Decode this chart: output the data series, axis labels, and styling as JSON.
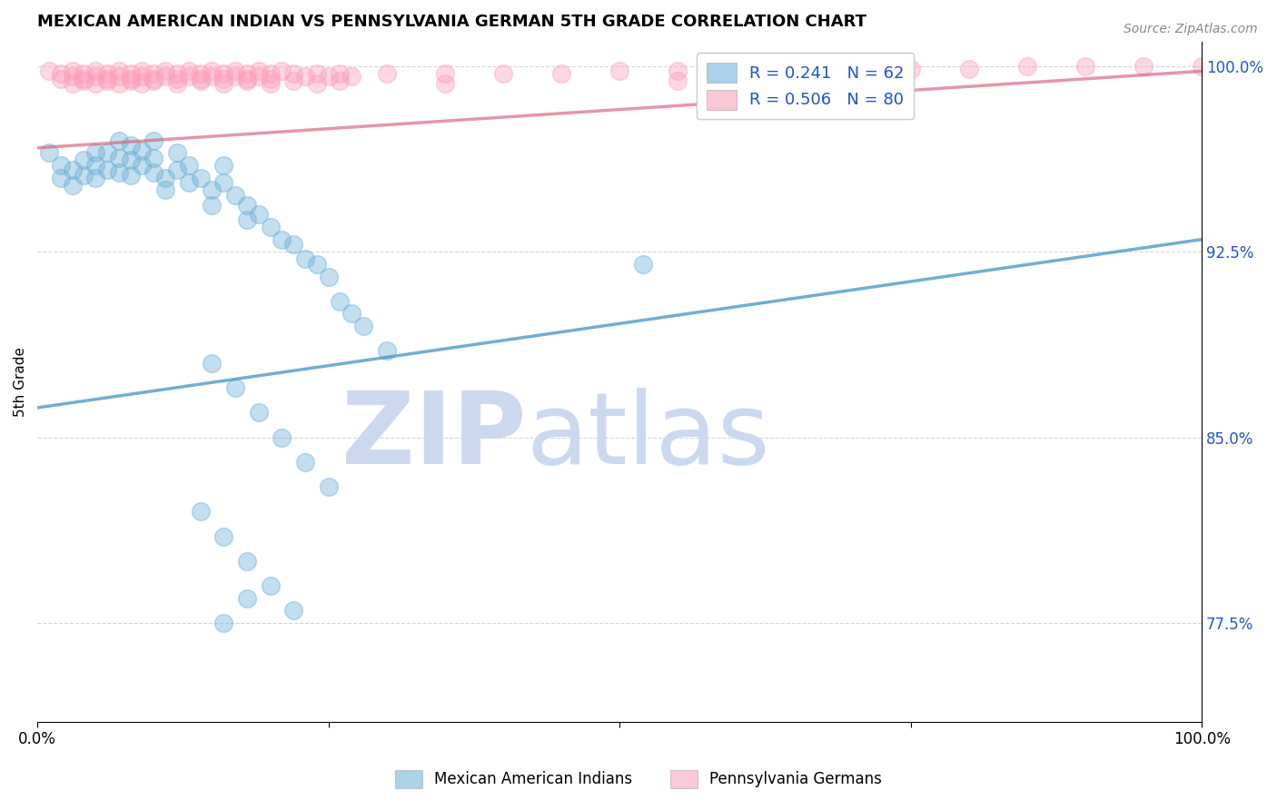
{
  "title": "MEXICAN AMERICAN INDIAN VS PENNSYLVANIA GERMAN 5TH GRADE CORRELATION CHART",
  "source_text": "Source: ZipAtlas.com",
  "ylabel": "5th Grade",
  "legend_entries": [
    {
      "label": "R = 0.241   N = 62",
      "color": "#6baed6"
    },
    {
      "label": "R = 0.506   N = 80",
      "color": "#fc9eba"
    }
  ],
  "legend_bottom": [
    {
      "label": "Mexican American Indians",
      "color": "#6baed6"
    },
    {
      "label": "Pennsylvania Germans",
      "color": "#fc9eba"
    }
  ],
  "xlim": [
    0.0,
    1.0
  ],
  "ylim": [
    0.735,
    1.01
  ],
  "right_yticks": [
    0.775,
    0.85,
    0.925,
    1.0
  ],
  "right_yticklabels": [
    "77.5%",
    "85.0%",
    "92.5%",
    "100.0%"
  ],
  "watermark_text": "ZIPatlas",
  "watermark_color": "#ccd8ee",
  "blue_scatter_x": [
    0.01,
    0.02,
    0.02,
    0.03,
    0.03,
    0.04,
    0.04,
    0.05,
    0.05,
    0.05,
    0.06,
    0.06,
    0.07,
    0.07,
    0.07,
    0.08,
    0.08,
    0.08,
    0.09,
    0.09,
    0.1,
    0.1,
    0.1,
    0.11,
    0.11,
    0.12,
    0.12,
    0.13,
    0.13,
    0.14,
    0.15,
    0.15,
    0.16,
    0.16,
    0.17,
    0.18,
    0.18,
    0.19,
    0.2,
    0.21,
    0.22,
    0.23,
    0.24,
    0.25,
    0.26,
    0.27,
    0.28,
    0.3,
    0.15,
    0.17,
    0.19,
    0.21,
    0.23,
    0.25,
    0.14,
    0.16,
    0.18,
    0.2,
    0.22,
    0.52,
    0.16,
    0.18
  ],
  "blue_scatter_y": [
    0.965,
    0.96,
    0.955,
    0.958,
    0.952,
    0.962,
    0.956,
    0.965,
    0.96,
    0.955,
    0.965,
    0.958,
    0.97,
    0.963,
    0.957,
    0.968,
    0.962,
    0.956,
    0.966,
    0.96,
    0.97,
    0.963,
    0.957,
    0.955,
    0.95,
    0.965,
    0.958,
    0.96,
    0.953,
    0.955,
    0.95,
    0.944,
    0.96,
    0.953,
    0.948,
    0.944,
    0.938,
    0.94,
    0.935,
    0.93,
    0.928,
    0.922,
    0.92,
    0.915,
    0.905,
    0.9,
    0.895,
    0.885,
    0.88,
    0.87,
    0.86,
    0.85,
    0.84,
    0.83,
    0.82,
    0.81,
    0.8,
    0.79,
    0.78,
    0.92,
    0.775,
    0.785
  ],
  "pink_scatter_x": [
    0.01,
    0.02,
    0.02,
    0.03,
    0.03,
    0.04,
    0.04,
    0.05,
    0.05,
    0.06,
    0.06,
    0.07,
    0.07,
    0.08,
    0.08,
    0.09,
    0.09,
    0.1,
    0.1,
    0.11,
    0.11,
    0.12,
    0.12,
    0.13,
    0.13,
    0.14,
    0.14,
    0.15,
    0.15,
    0.16,
    0.16,
    0.17,
    0.17,
    0.18,
    0.18,
    0.19,
    0.19,
    0.2,
    0.2,
    0.21,
    0.22,
    0.23,
    0.24,
    0.25,
    0.26,
    0.27,
    0.3,
    0.35,
    0.4,
    0.45,
    0.5,
    0.55,
    0.6,
    0.65,
    0.7,
    0.75,
    0.8,
    0.85,
    0.9,
    0.95,
    1.0,
    0.03,
    0.04,
    0.05,
    0.06,
    0.07,
    0.08,
    0.09,
    0.1,
    0.12,
    0.14,
    0.16,
    0.18,
    0.2,
    0.22,
    0.24,
    0.26,
    0.35,
    0.55,
    0.7
  ],
  "pink_scatter_y": [
    0.998,
    0.997,
    0.995,
    0.998,
    0.996,
    0.997,
    0.995,
    0.998,
    0.996,
    0.997,
    0.995,
    0.998,
    0.996,
    0.997,
    0.995,
    0.998,
    0.996,
    0.997,
    0.995,
    0.998,
    0.996,
    0.997,
    0.995,
    0.998,
    0.996,
    0.997,
    0.995,
    0.998,
    0.996,
    0.997,
    0.995,
    0.998,
    0.996,
    0.997,
    0.995,
    0.998,
    0.996,
    0.997,
    0.995,
    0.998,
    0.997,
    0.996,
    0.997,
    0.996,
    0.997,
    0.996,
    0.997,
    0.997,
    0.997,
    0.997,
    0.998,
    0.998,
    0.998,
    0.999,
    0.999,
    0.999,
    0.999,
    1.0,
    1.0,
    1.0,
    1.0,
    0.993,
    0.994,
    0.993,
    0.994,
    0.993,
    0.994,
    0.993,
    0.994,
    0.993,
    0.994,
    0.993,
    0.994,
    0.993,
    0.994,
    0.993,
    0.994,
    0.993,
    0.994,
    0.993
  ],
  "blue_line_x": [
    0.0,
    1.0
  ],
  "blue_line_y": [
    0.862,
    0.93
  ],
  "pink_line_x": [
    0.0,
    1.0
  ],
  "pink_line_y": [
    0.967,
    0.998
  ],
  "blue_color": "#6baed6",
  "pink_color": "#fc9eba",
  "blue_line_color": "#4393c3",
  "pink_line_color": "#d4607a",
  "grid_color": "#cccccc",
  "background_color": "#ffffff"
}
